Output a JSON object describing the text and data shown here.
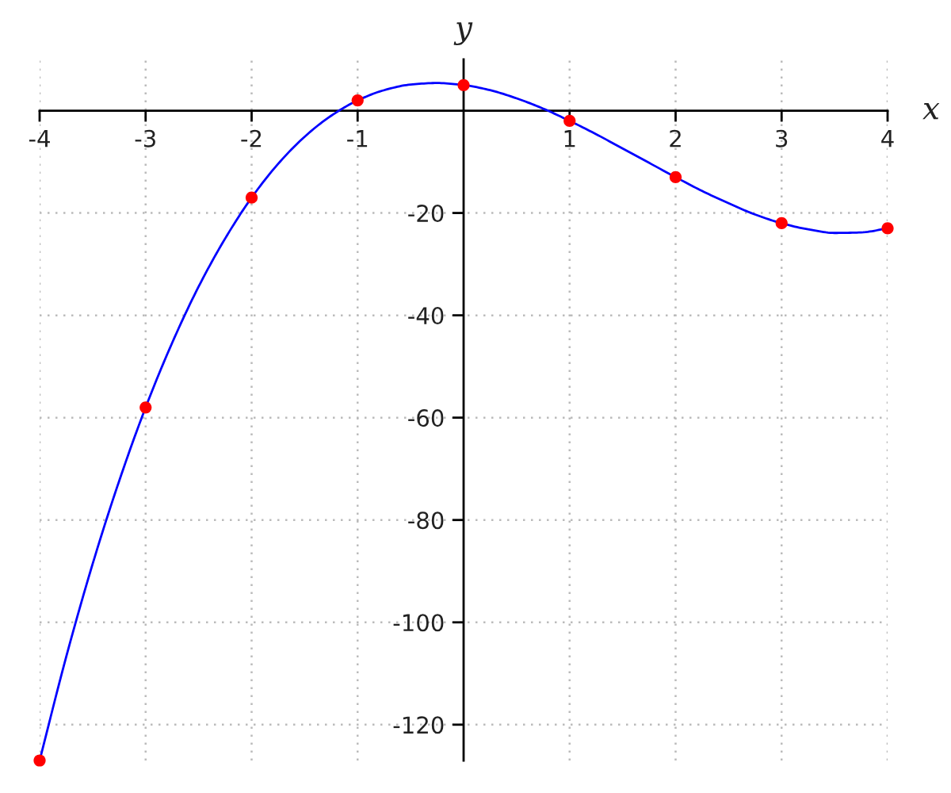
{
  "chart_data": {
    "type": "scatter",
    "xlabel": "x",
    "ylabel": "y",
    "xlim": [
      -4,
      4
    ],
    "ylim": [
      -127,
      10
    ],
    "xticks": [
      -4,
      -3,
      -2,
      -1,
      1,
      2,
      3,
      4
    ],
    "yticks": [
      -120,
      -100,
      -80,
      -60,
      -40,
      -20
    ],
    "grid": true,
    "series": [
      {
        "type": "line",
        "color": "#0000ff",
        "marker": "none",
        "line_style": "solid",
        "x": [
          -4,
          -3.75,
          -3.5,
          -3.25,
          -3,
          -2.75,
          -2.5,
          -2.25,
          -2,
          -1.75,
          -1.5,
          -1.25,
          -1,
          -0.75,
          -0.5,
          -0.25,
          0,
          0.25,
          0.5,
          0.75,
          1,
          1.25,
          1.5,
          1.75,
          2,
          2.25,
          2.5,
          2.75,
          3,
          3.25,
          3.5,
          3.75,
          4
        ],
        "values": [
          -127,
          -106.8,
          -88.6,
          -72.4,
          -58,
          -45.4,
          -34.4,
          -25.0,
          -17,
          -10.4,
          -5.1,
          -1.0,
          2,
          4.0,
          5.1,
          5.4,
          5,
          4.0,
          2.4,
          0.4,
          -2,
          -4.6,
          -7.4,
          -10.2,
          -13,
          -15.7,
          -18.1,
          -20.3,
          -22,
          -23.2,
          -23.9,
          -23.8,
          -23
        ]
      },
      {
        "color": "#ff0000",
        "marker": "circle",
        "x": [
          -4,
          -3,
          -2,
          -1,
          0,
          1,
          2,
          3,
          4
        ],
        "values": [
          -127,
          -58,
          -17,
          2,
          5,
          -2,
          -13,
          -22,
          -23
        ]
      }
    ]
  }
}
